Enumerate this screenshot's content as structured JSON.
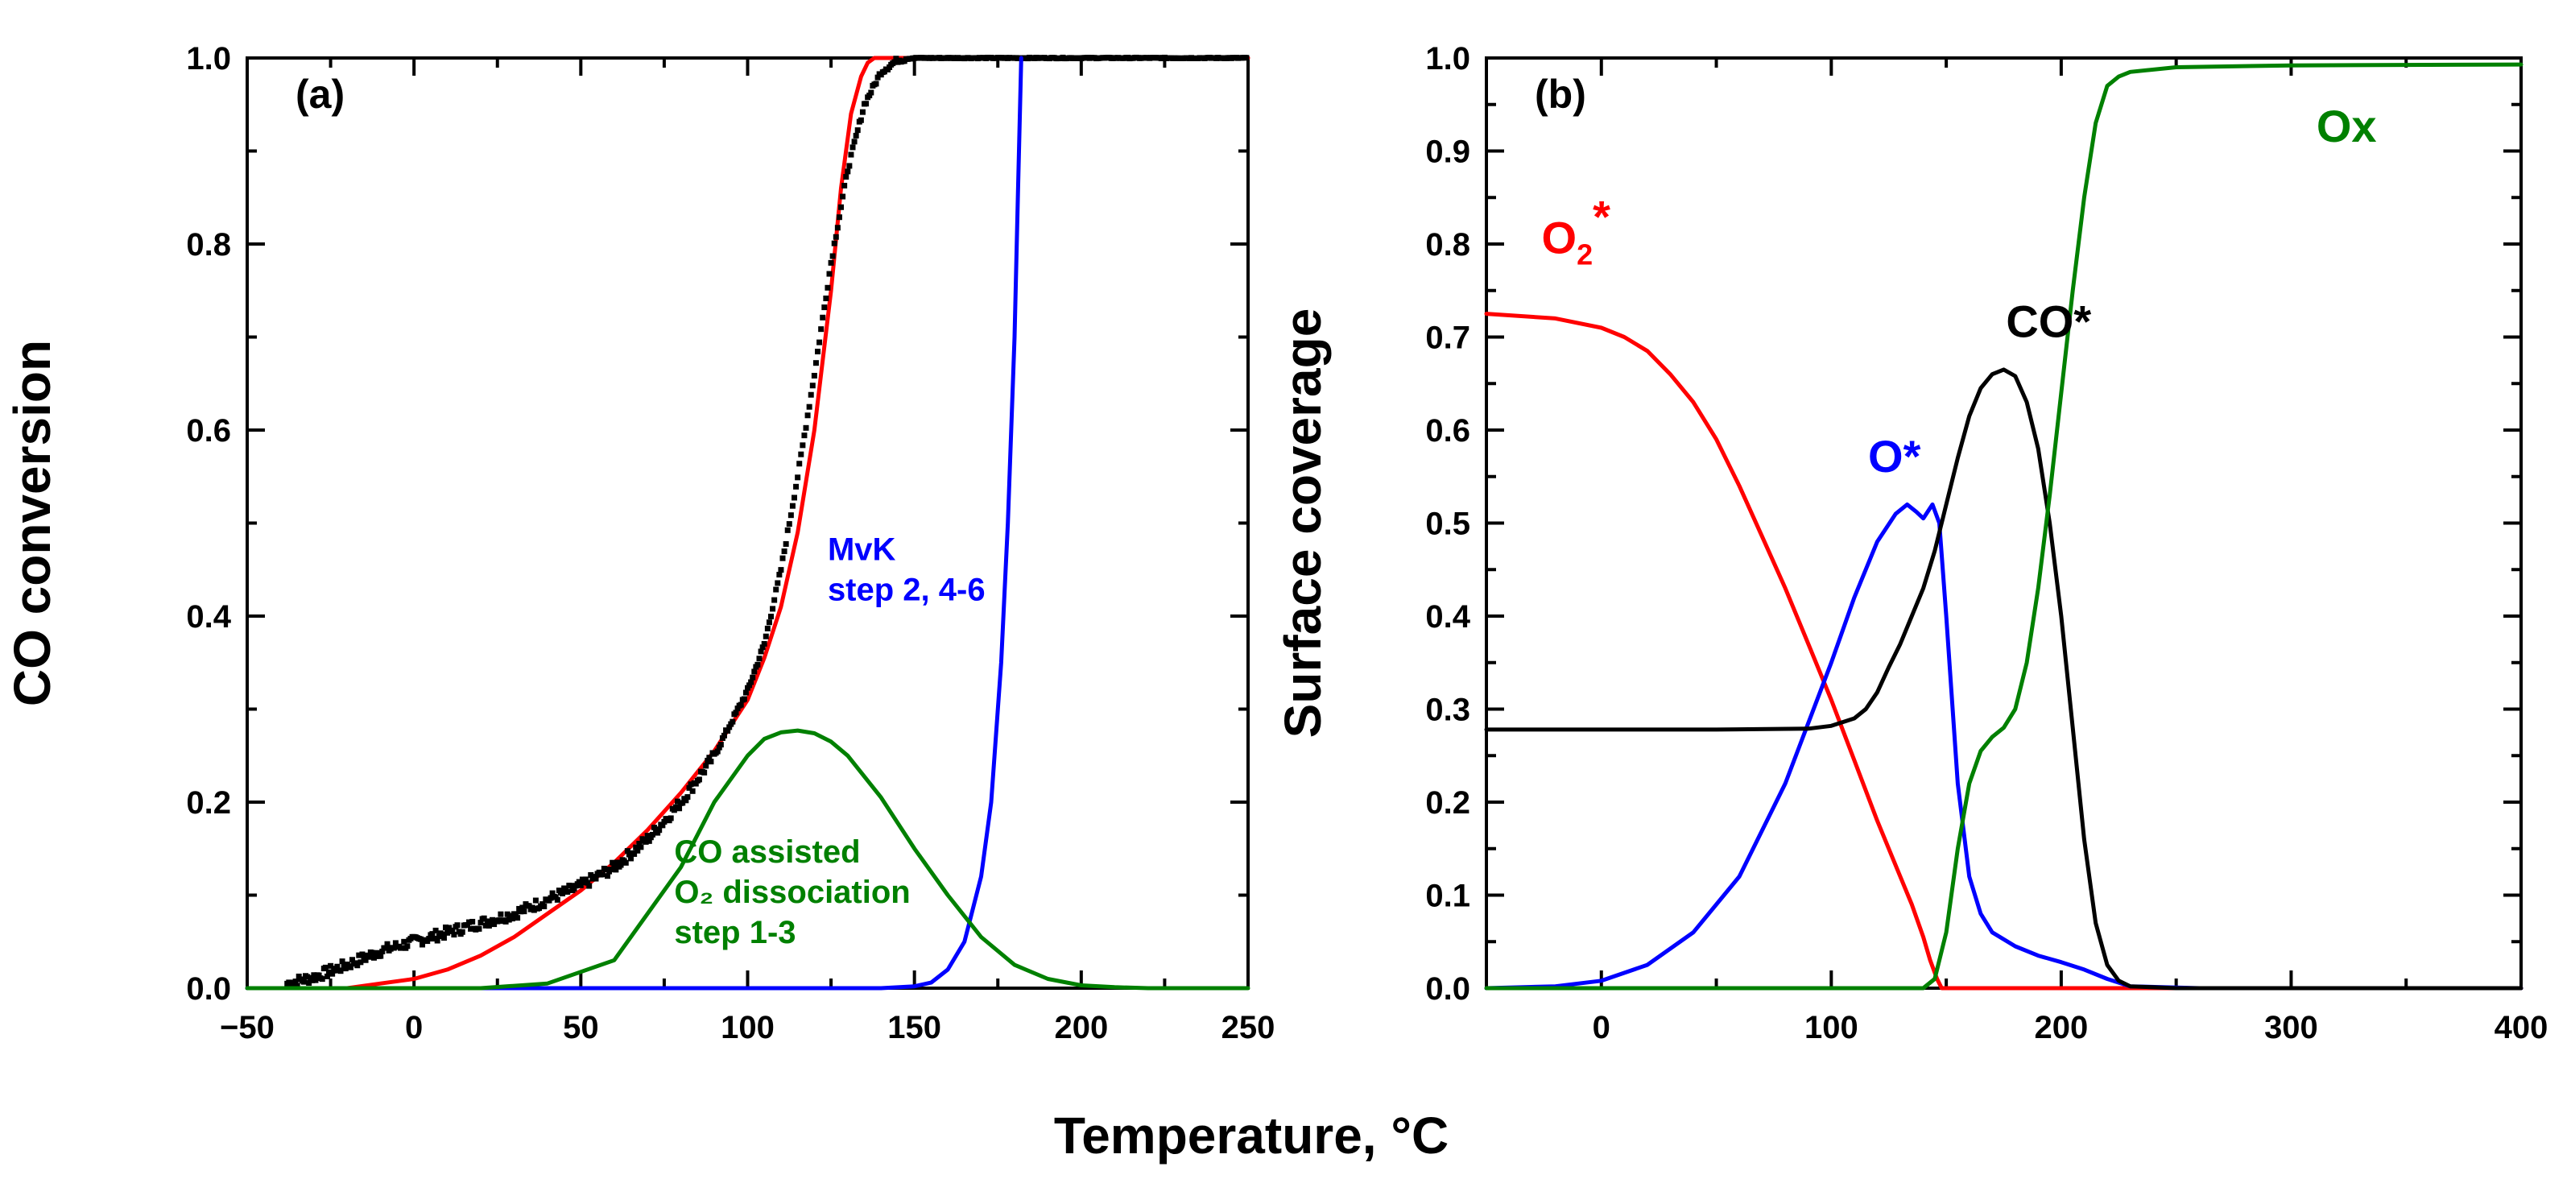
{
  "shared": {
    "xlabel": "Temperature, °C"
  },
  "colors": {
    "red": "#ff0000",
    "blue": "#0000ff",
    "green": "#008000",
    "black": "#000000"
  },
  "chart_data": [
    {
      "type": "line",
      "panel_label": "(a)",
      "ylabel": "CO conversion",
      "xlim": [
        -50,
        250
      ],
      "ylim": [
        0,
        1.0
      ],
      "xticks": [
        -50,
        0,
        50,
        100,
        150,
        200,
        250
      ],
      "xtick_labels": [
        "−50",
        "0",
        "50",
        "100",
        "150",
        "200",
        "250"
      ],
      "yticks": [
        0,
        0.2,
        0.4,
        0.6,
        0.8,
        1.0
      ],
      "ytick_labels": [
        "0.0",
        "0.2",
        "0.4",
        "0.6",
        "0.8",
        "1.0"
      ],
      "grid": false,
      "series": [
        {
          "color": "#ff0000",
          "style": "line",
          "x": [
            -20,
            -10,
            0,
            10,
            20,
            30,
            40,
            50,
            60,
            70,
            80,
            90,
            100,
            105,
            110,
            115,
            120,
            125,
            128,
            131,
            134,
            136,
            138,
            250
          ],
          "y": [
            0.0,
            0.005,
            0.01,
            0.02,
            0.035,
            0.055,
            0.08,
            0.105,
            0.135,
            0.17,
            0.21,
            0.255,
            0.31,
            0.355,
            0.41,
            0.49,
            0.6,
            0.75,
            0.86,
            0.94,
            0.98,
            0.995,
            1.0,
            1.0
          ]
        },
        {
          "color": "#000000",
          "style": "scatter",
          "x": [
            -38,
            -30,
            -20,
            -10,
            0,
            10,
            20,
            30,
            40,
            50,
            60,
            70,
            80,
            90,
            100,
            105,
            110,
            115,
            120,
            125,
            130,
            135,
            140,
            145,
            150,
            160,
            180,
            200,
            220,
            250
          ],
          "y": [
            0.005,
            0.012,
            0.025,
            0.04,
            0.05,
            0.06,
            0.07,
            0.08,
            0.095,
            0.11,
            0.13,
            0.16,
            0.2,
            0.25,
            0.32,
            0.37,
            0.45,
            0.55,
            0.66,
            0.78,
            0.88,
            0.95,
            0.985,
            0.998,
            1.0,
            1.0,
            1.0,
            1.0,
            1.0,
            1.0
          ]
        },
        {
          "color": "#0000ff",
          "style": "line",
          "x": [
            -50,
            140,
            150,
            155,
            160,
            165,
            170,
            173,
            176,
            178,
            180,
            181,
            182
          ],
          "y": [
            0.0,
            0.0,
            0.002,
            0.006,
            0.02,
            0.05,
            0.12,
            0.2,
            0.35,
            0.5,
            0.7,
            0.85,
            1.0
          ]
        },
        {
          "color": "#008000",
          "style": "line",
          "x": [
            -50,
            0,
            20,
            40,
            60,
            80,
            90,
            100,
            105,
            110,
            115,
            120,
            125,
            130,
            140,
            150,
            160,
            170,
            180,
            190,
            200,
            210,
            220,
            250
          ],
          "y": [
            0.0,
            0.0,
            0.0,
            0.005,
            0.03,
            0.13,
            0.2,
            0.25,
            0.268,
            0.275,
            0.277,
            0.274,
            0.265,
            0.25,
            0.205,
            0.15,
            0.1,
            0.055,
            0.025,
            0.01,
            0.003,
            0.001,
            0.0,
            0.0
          ]
        }
      ],
      "annotations": [
        {
          "lines": [
            "MvK",
            "step 2, 4-6"
          ],
          "color": "#0000ff",
          "x": 124,
          "y": 0.46
        },
        {
          "lines": [
            "CO assisted",
            "O₂ dissociation",
            "step 1-3"
          ],
          "color": "#008000",
          "x": 78,
          "y": 0.135
        }
      ]
    },
    {
      "type": "line",
      "panel_label": "(b)",
      "ylabel": "Surface coverage",
      "xlim": [
        -50,
        400
      ],
      "ylim": [
        0,
        1.0
      ],
      "xticks": [
        0,
        100,
        200,
        300,
        400
      ],
      "xtick_labels": [
        "0",
        "100",
        "200",
        "300",
        "400"
      ],
      "yticks": [
        0,
        0.1,
        0.2,
        0.3,
        0.4,
        0.5,
        0.6,
        0.7,
        0.8,
        0.9,
        1.0
      ],
      "ytick_labels": [
        "0.0",
        "0.1",
        "0.2",
        "0.3",
        "0.4",
        "0.5",
        "0.6",
        "0.7",
        "0.8",
        "0.9",
        "1.0"
      ],
      "grid": false,
      "series": [
        {
          "color": "#ff0000",
          "style": "line",
          "x": [
            -50,
            -20,
            0,
            10,
            20,
            30,
            40,
            50,
            60,
            70,
            80,
            90,
            100,
            110,
            120,
            130,
            135,
            140,
            143,
            146,
            148,
            400
          ],
          "y": [
            0.725,
            0.72,
            0.71,
            0.7,
            0.685,
            0.66,
            0.63,
            0.59,
            0.54,
            0.485,
            0.43,
            0.37,
            0.31,
            0.245,
            0.18,
            0.12,
            0.09,
            0.055,
            0.03,
            0.01,
            0.0,
            0.0
          ]
        },
        {
          "color": "#0000ff",
          "style": "line",
          "x": [
            -50,
            -20,
            0,
            20,
            40,
            60,
            80,
            100,
            110,
            120,
            128,
            133,
            137,
            140,
            144,
            147,
            150,
            155,
            160,
            165,
            170,
            180,
            190,
            200,
            210,
            220,
            230,
            260,
            400
          ],
          "y": [
            0.0,
            0.002,
            0.008,
            0.025,
            0.06,
            0.12,
            0.22,
            0.35,
            0.42,
            0.48,
            0.51,
            0.52,
            0.512,
            0.505,
            0.52,
            0.5,
            0.4,
            0.22,
            0.12,
            0.08,
            0.06,
            0.045,
            0.035,
            0.028,
            0.02,
            0.01,
            0.002,
            0.0,
            0.0
          ]
        },
        {
          "color": "#000000",
          "style": "line",
          "x": [
            -50,
            50,
            90,
            100,
            110,
            115,
            120,
            125,
            130,
            135,
            140,
            145,
            150,
            155,
            160,
            165,
            170,
            175,
            180,
            185,
            190,
            195,
            200,
            205,
            210,
            215,
            220,
            225,
            230,
            250,
            400
          ],
          "y": [
            0.278,
            0.278,
            0.279,
            0.282,
            0.29,
            0.3,
            0.318,
            0.345,
            0.37,
            0.4,
            0.43,
            0.47,
            0.52,
            0.57,
            0.615,
            0.645,
            0.66,
            0.665,
            0.658,
            0.63,
            0.58,
            0.5,
            0.4,
            0.28,
            0.16,
            0.07,
            0.025,
            0.008,
            0.002,
            0.0,
            0.0
          ]
        },
        {
          "color": "#008000",
          "style": "line",
          "x": [
            -50,
            140,
            145,
            150,
            155,
            160,
            165,
            170,
            175,
            180,
            185,
            190,
            195,
            200,
            205,
            210,
            215,
            220,
            225,
            230,
            250,
            300,
            400
          ],
          "y": [
            0.0,
            0.0,
            0.01,
            0.06,
            0.15,
            0.22,
            0.255,
            0.27,
            0.28,
            0.3,
            0.35,
            0.43,
            0.53,
            0.64,
            0.75,
            0.85,
            0.93,
            0.97,
            0.98,
            0.985,
            0.99,
            0.992,
            0.993
          ]
        }
      ],
      "annotations": [
        {
          "text": "O",
          "sub": "2",
          "sup": "*",
          "color": "#ff0000",
          "x": -26,
          "y": 0.79
        },
        {
          "text": "O*",
          "color": "#0000ff",
          "x": 116,
          "y": 0.555
        },
        {
          "text": "CO*",
          "color": "#000000",
          "x": 176,
          "y": 0.7
        },
        {
          "text": "Ox",
          "color": "#008000",
          "x": 311,
          "y": 0.91
        }
      ]
    }
  ]
}
